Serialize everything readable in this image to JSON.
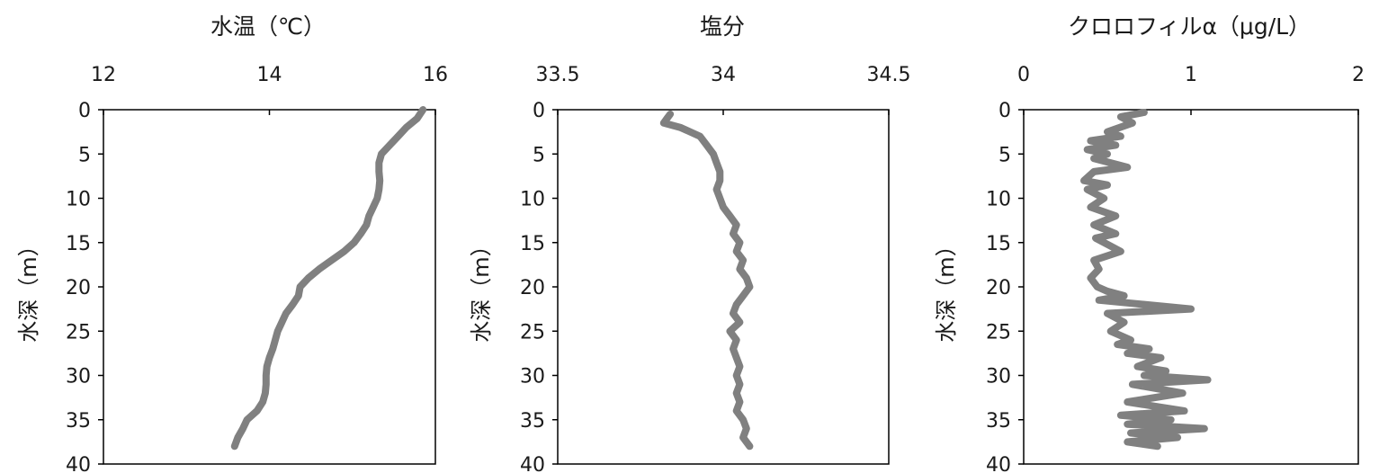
{
  "chart_data": [
    {
      "type": "line",
      "title": "水温（℃）",
      "ylabel": "水深（m）",
      "x_axis_position": "top",
      "xlim": [
        12,
        16
      ],
      "x_ticks": [
        "12",
        "14",
        "16"
      ],
      "ylim": [
        0,
        40
      ],
      "y_inverted": true,
      "y_ticks": [
        "0",
        "5",
        "10",
        "15",
        "20",
        "25",
        "30",
        "35",
        "40"
      ],
      "grid": false,
      "line_color": "#808080",
      "series": [
        {
          "points": [
            [
              15.85,
              0
            ],
            [
              15.78,
              1
            ],
            [
              15.65,
              2
            ],
            [
              15.55,
              3
            ],
            [
              15.45,
              4
            ],
            [
              15.35,
              5
            ],
            [
              15.32,
              6
            ],
            [
              15.32,
              7
            ],
            [
              15.33,
              8
            ],
            [
              15.32,
              9
            ],
            [
              15.3,
              10
            ],
            [
              15.25,
              11
            ],
            [
              15.2,
              12
            ],
            [
              15.17,
              13
            ],
            [
              15.1,
              14
            ],
            [
              15.02,
              15
            ],
            [
              14.9,
              16
            ],
            [
              14.75,
              17
            ],
            [
              14.6,
              18
            ],
            [
              14.47,
              19
            ],
            [
              14.37,
              20
            ],
            [
              14.35,
              21
            ],
            [
              14.28,
              22
            ],
            [
              14.2,
              23
            ],
            [
              14.15,
              24
            ],
            [
              14.1,
              25
            ],
            [
              14.07,
              26
            ],
            [
              14.04,
              27
            ],
            [
              14,
              28
            ],
            [
              13.97,
              29
            ],
            [
              13.96,
              30
            ],
            [
              13.96,
              31
            ],
            [
              13.95,
              32
            ],
            [
              13.92,
              33
            ],
            [
              13.85,
              34
            ],
            [
              13.73,
              35
            ],
            [
              13.68,
              36
            ],
            [
              13.62,
              37
            ],
            [
              13.58,
              38
            ]
          ]
        }
      ]
    },
    {
      "type": "line",
      "title": "塩分",
      "ylabel": "水深（m）",
      "x_axis_position": "top",
      "xlim": [
        33.5,
        34.5
      ],
      "x_ticks": [
        "33.5",
        "34",
        "34.5"
      ],
      "ylim": [
        0,
        40
      ],
      "y_inverted": true,
      "y_ticks": [
        "0",
        "5",
        "10",
        "15",
        "20",
        "25",
        "30",
        "35",
        "40"
      ],
      "grid": false,
      "line_color": "#808080",
      "series": [
        {
          "points": [
            [
              33.84,
              0.5
            ],
            [
              33.83,
              1
            ],
            [
              33.82,
              1.5
            ],
            [
              33.87,
              2
            ],
            [
              33.9,
              2.5
            ],
            [
              33.93,
              3
            ],
            [
              33.95,
              4
            ],
            [
              33.97,
              5
            ],
            [
              33.98,
              6
            ],
            [
              33.99,
              7
            ],
            [
              33.99,
              8
            ],
            [
              33.98,
              9
            ],
            [
              33.99,
              10
            ],
            [
              34,
              11
            ],
            [
              34.02,
              12
            ],
            [
              34.04,
              13
            ],
            [
              34.03,
              14
            ],
            [
              34.05,
              15
            ],
            [
              34.04,
              16
            ],
            [
              34.06,
              17
            ],
            [
              34.05,
              18
            ],
            [
              34.07,
              19
            ],
            [
              34.08,
              20
            ],
            [
              34.06,
              21
            ],
            [
              34.04,
              22
            ],
            [
              34.03,
              23
            ],
            [
              34.05,
              24
            ],
            [
              34.02,
              25
            ],
            [
              34.04,
              26
            ],
            [
              34.03,
              27
            ],
            [
              34.04,
              28
            ],
            [
              34.05,
              29
            ],
            [
              34.04,
              30
            ],
            [
              34.05,
              31
            ],
            [
              34.04,
              32
            ],
            [
              34.05,
              33
            ],
            [
              34.04,
              34
            ],
            [
              34.06,
              35
            ],
            [
              34.07,
              36
            ],
            [
              34.06,
              37
            ],
            [
              34.08,
              38
            ]
          ]
        }
      ]
    },
    {
      "type": "line",
      "title": "クロロフィルα（μg/L）",
      "ylabel": "水深（m）",
      "x_axis_position": "top",
      "xlim": [
        0,
        2
      ],
      "x_ticks": [
        "0",
        "1",
        "2"
      ],
      "ylim": [
        0,
        40
      ],
      "y_inverted": true,
      "y_ticks": [
        "0",
        "5",
        "10",
        "15",
        "20",
        "25",
        "30",
        "35",
        "40"
      ],
      "grid": false,
      "line_color": "#808080",
      "series": [
        {
          "points": [
            [
              0.72,
              0.3
            ],
            [
              0.58,
              0.8
            ],
            [
              0.65,
              1.5
            ],
            [
              0.5,
              2.5
            ],
            [
              0.58,
              3
            ],
            [
              0.4,
              3.5
            ],
            [
              0.55,
              4
            ],
            [
              0.38,
              4.5
            ],
            [
              0.5,
              5
            ],
            [
              0.42,
              5.5
            ],
            [
              0.62,
              6.5
            ],
            [
              0.42,
              7
            ],
            [
              0.36,
              8
            ],
            [
              0.5,
              8.5
            ],
            [
              0.38,
              9
            ],
            [
              0.48,
              10
            ],
            [
              0.4,
              11
            ],
            [
              0.55,
              12
            ],
            [
              0.42,
              13
            ],
            [
              0.55,
              14
            ],
            [
              0.43,
              14.5
            ],
            [
              0.58,
              16
            ],
            [
              0.42,
              17
            ],
            [
              0.45,
              18
            ],
            [
              0.4,
              19
            ],
            [
              0.44,
              20
            ],
            [
              0.5,
              20.5
            ],
            [
              0.6,
              21
            ],
            [
              0.45,
              21.5
            ],
            [
              1,
              22.5
            ],
            [
              0.5,
              23
            ],
            [
              0.6,
              24
            ],
            [
              0.52,
              25
            ],
            [
              0.64,
              26
            ],
            [
              0.56,
              26.5
            ],
            [
              0.75,
              27
            ],
            [
              0.62,
              27.5
            ],
            [
              0.82,
              28
            ],
            [
              0.68,
              29
            ],
            [
              0.85,
              29.5
            ],
            [
              0.72,
              30
            ],
            [
              1.1,
              30.5
            ],
            [
              0.65,
              31
            ],
            [
              0.95,
              32
            ],
            [
              0.62,
              33
            ],
            [
              0.96,
              34
            ],
            [
              0.58,
              34.5
            ],
            [
              0.88,
              35
            ],
            [
              0.62,
              35.5
            ],
            [
              1.08,
              36
            ],
            [
              0.64,
              36.5
            ],
            [
              0.92,
              37
            ],
            [
              0.62,
              37.5
            ],
            [
              0.8,
              38
            ]
          ]
        }
      ]
    }
  ]
}
